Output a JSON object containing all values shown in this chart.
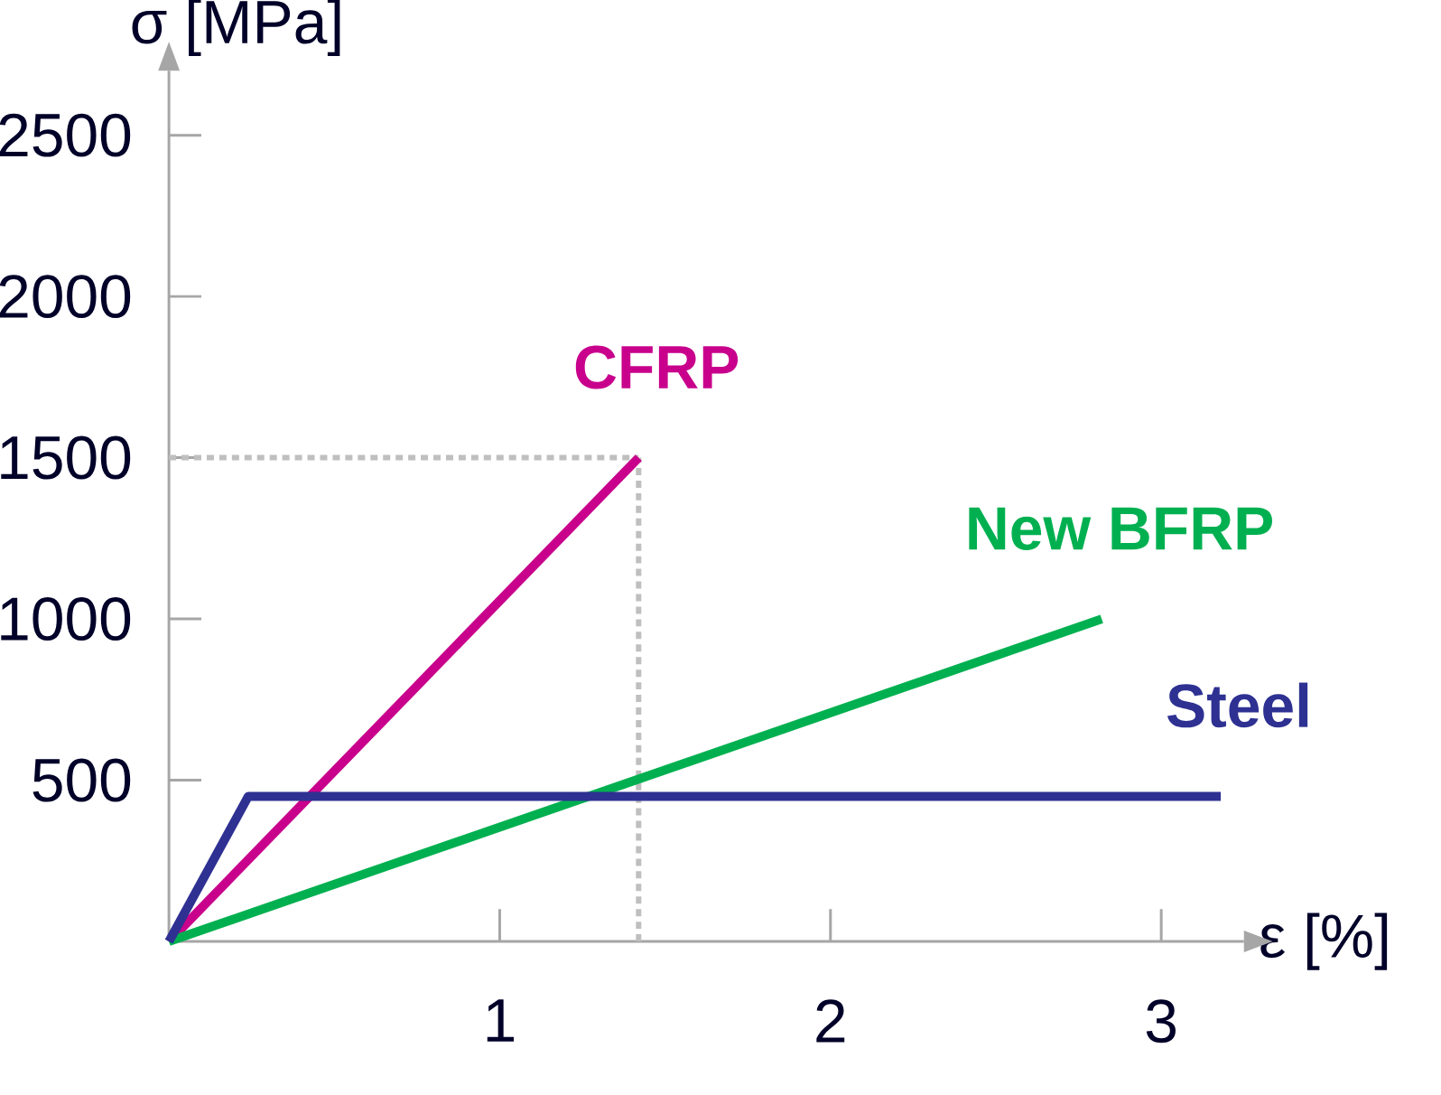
{
  "chart_data": {
    "type": "line",
    "xlabel": "ε [%]",
    "ylabel": "σ [MPa]",
    "xlim": [
      0,
      3.25
    ],
    "ylim": [
      0,
      2700
    ],
    "xticks": [
      1,
      2,
      3
    ],
    "yticks": [
      500,
      1000,
      1500,
      2000,
      2500
    ],
    "series": [
      {
        "name": "CFRP",
        "color": "#c8008c",
        "x": [
          0,
          1.42
        ],
        "values": [
          0,
          1500
        ]
      },
      {
        "name": "New BFRP",
        "color": "#00b050",
        "x": [
          0,
          2.82
        ],
        "values": [
          0,
          1000
        ]
      },
      {
        "name": "Steel",
        "color": "#2e3192",
        "x": [
          0,
          0.24,
          3.18
        ],
        "values": [
          0,
          450,
          450
        ]
      }
    ],
    "ref_lines": [
      {
        "axis": "x",
        "value": 1.42,
        "color": "#bfbfbf",
        "line_style": "dotted"
      },
      {
        "axis": "y",
        "value": 1500,
        "color": "#bfbfbf",
        "line_style": "dotted"
      }
    ],
    "grid": false,
    "marker": "none",
    "line_style": "solid"
  }
}
